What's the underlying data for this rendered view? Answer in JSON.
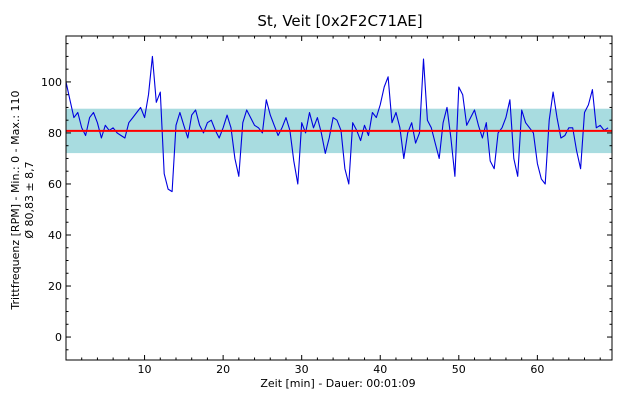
{
  "chart_data": {
    "type": "line",
    "title": "St, Veit [0x2F2C71AE]",
    "xlabel": "Zeit [min] - Dauer: 00:01:09",
    "ylabel_lines": [
      "Trittfrequenz [RPM] - Min.: 0 - Max.: 110",
      "Ø 80,83 ± 8,7"
    ],
    "xlim": [
      0,
      69.5
    ],
    "ylim": [
      -9,
      118
    ],
    "x_ticks": [
      10,
      20,
      30,
      40,
      50,
      60
    ],
    "y_ticks": [
      0,
      20,
      40,
      60,
      80,
      100
    ],
    "mean": 80.83,
    "std": 8.7,
    "band": [
      72.1,
      89.5
    ],
    "colors": {
      "line": "#0000e0",
      "mean_line": "#ff0000",
      "band": "#a8dce0",
      "frame": "#000000"
    },
    "series": [
      {
        "x": [
          0,
          0.5,
          1,
          1.5,
          2,
          2.5,
          3,
          3.5,
          4,
          4.5,
          5,
          5.5,
          6,
          6.5,
          7,
          7.5,
          8,
          8.5,
          9,
          9.5,
          10,
          10.5,
          11,
          11.5,
          12,
          12.5,
          13,
          13.5,
          14,
          14.5,
          15,
          15.5,
          16,
          16.5,
          17,
          17.5,
          18,
          18.5,
          19,
          19.5,
          20,
          20.5,
          21,
          21.5,
          22,
          22.5,
          23,
          23.5,
          24,
          24.5,
          25,
          25.5,
          26,
          26.5,
          27,
          27.5,
          28,
          28.5,
          29,
          29.5,
          30,
          30.5,
          31,
          31.5,
          32,
          32.5,
          33,
          33.5,
          34,
          34.5,
          35,
          35.5,
          36,
          36.5,
          37,
          37.5,
          38,
          38.5,
          39,
          39.5,
          40,
          40.5,
          41,
          41.5,
          42,
          42.5,
          43,
          43.5,
          44,
          44.5,
          45,
          45.5,
          46,
          46.5,
          47,
          47.5,
          48,
          48.5,
          49,
          49.5,
          50,
          50.5,
          51,
          51.5,
          52,
          52.5,
          53,
          53.5,
          54,
          54.5,
          55,
          55.5,
          56,
          56.5,
          57,
          57.5,
          58,
          58.5,
          59,
          59.5,
          60,
          60.5,
          61,
          61.5,
          62,
          62.5,
          63,
          63.5,
          64,
          64.5,
          65,
          65.5,
          66,
          66.5,
          67,
          67.5,
          68,
          68.5,
          69
        ],
        "y": [
          100,
          93,
          86,
          88,
          82,
          79,
          86,
          88,
          84,
          78,
          83,
          81,
          82,
          80,
          79,
          78,
          84,
          86,
          88,
          90,
          86,
          95,
          110,
          92,
          96,
          64,
          58,
          57,
          83,
          88,
          83,
          78,
          87,
          89,
          83,
          80,
          84,
          85,
          81,
          78,
          82,
          87,
          82,
          70,
          63,
          84,
          89,
          86,
          83,
          82,
          80,
          93,
          87,
          83,
          79,
          82,
          86,
          81,
          69,
          60,
          84,
          80,
          88,
          82,
          86,
          80,
          72,
          78,
          86,
          85,
          81,
          66,
          60,
          84,
          81,
          77,
          83,
          79,
          88,
          86,
          91,
          98,
          102,
          84,
          88,
          82,
          70,
          80,
          84,
          76,
          80,
          109,
          85,
          82,
          76,
          70,
          84,
          90,
          78,
          63,
          98,
          95,
          83,
          86,
          89,
          83,
          78,
          84,
          69,
          66,
          80,
          82,
          86,
          93,
          70,
          63,
          89,
          84,
          82,
          80,
          68,
          62,
          60,
          85,
          96,
          86,
          78,
          79,
          82,
          82,
          73,
          66,
          88,
          91,
          97,
          82,
          83,
          81,
          82
        ]
      }
    ]
  }
}
